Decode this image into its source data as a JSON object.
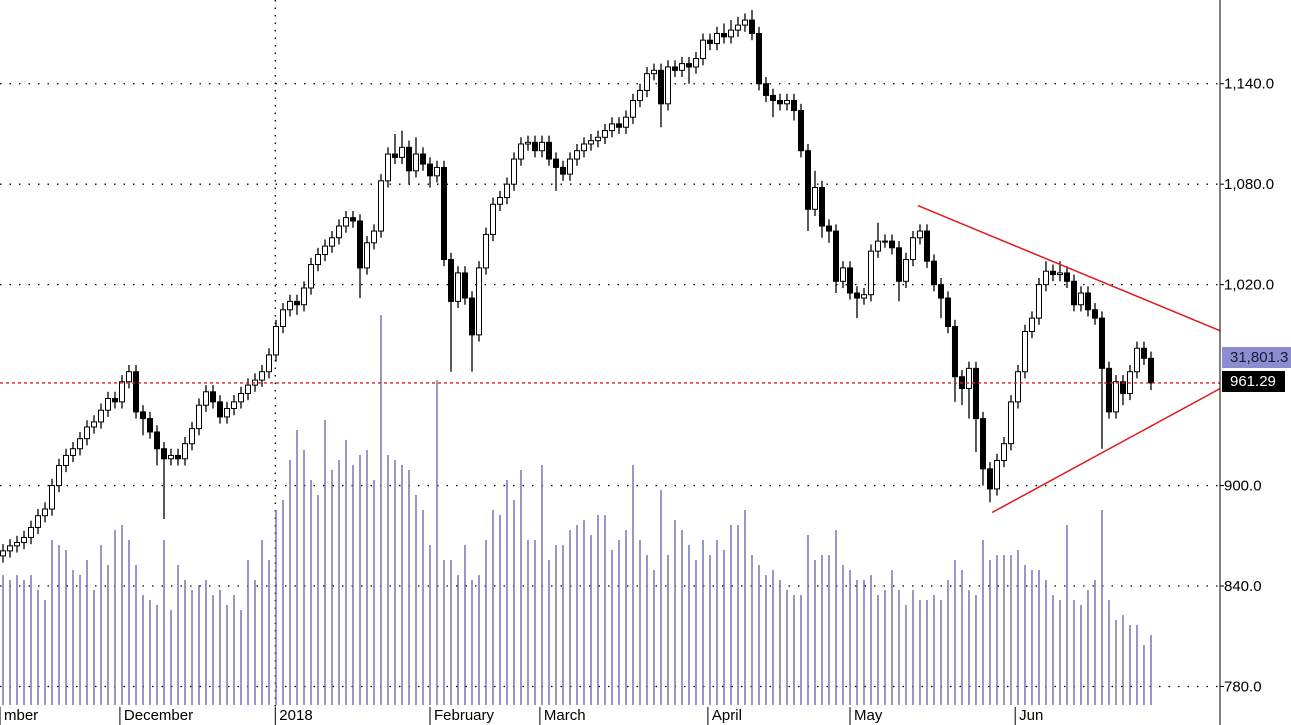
{
  "chart_data": {
    "type": "candlestick",
    "xlim": [
      -0.43,
      173.86
    ],
    "xticks": [
      {
        "value": -0.43,
        "label": "mber"
      },
      {
        "value": 16.7,
        "label": "December"
      },
      {
        "value": 38.9,
        "label": "2018"
      },
      {
        "value": 61,
        "label": "February"
      },
      {
        "value": 76.7,
        "label": "March"
      },
      {
        "value": 100.7,
        "label": "April"
      },
      {
        "value": 121,
        "label": "May"
      },
      {
        "value": 144.6,
        "label": "Jun"
      }
    ],
    "ylim": [
      757,
      1190
    ],
    "yticks": [
      {
        "value": 1140,
        "label": "1,140.0"
      },
      {
        "value": 1080,
        "label": "1,080.0"
      },
      {
        "value": 1020,
        "label": "1,020.0"
      },
      {
        "value": 900,
        "label": "900.0"
      },
      {
        "value": 840,
        "label": "840.0"
      },
      {
        "value": 780,
        "label": "780.0"
      }
    ],
    "grid": true,
    "y2lim": [
      0,
      705
    ],
    "up_color": "#ffffff",
    "down_color": "#000000",
    "volume_color": "#6b6bb5",
    "volume_label": "31,801.3",
    "trendline_color": "#e01a1a",
    "open": [
      858,
      861,
      864,
      866,
      869,
      875,
      882,
      886,
      900,
      912,
      918,
      922,
      928,
      935,
      938,
      945,
      952,
      950,
      962,
      968,
      944,
      940,
      932,
      922,
      916,
      918,
      916,
      925,
      934,
      948,
      956,
      950,
      941,
      946,
      950,
      955,
      960,
      963,
      968,
      978,
      995,
      1005,
      1010,
      1008,
      1018,
      1032,
      1038,
      1043,
      1048,
      1055,
      1060,
      1058,
      1030,
      1045,
      1052,
      1082,
      1098,
      1096,
      1102,
      1088,
      1098,
      1092,
      1085,
      1090,
      1035,
      1010,
      1027,
      1012,
      990,
      1030,
      1050,
      1068,
      1072,
      1080,
      1095,
      1104,
      1105,
      1100,
      1105,
      1095,
      1090,
      1086,
      1095,
      1100,
      1104,
      1106,
      1108,
      1112,
      1116,
      1114,
      1120,
      1130,
      1136,
      1146,
      1148,
      1128,
      1150,
      1148,
      1152,
      1150,
      1155,
      1166,
      1164,
      1170,
      1168,
      1172,
      1175,
      1178,
      1170,
      1140,
      1133,
      1130,
      1128,
      1130,
      1124,
      1100,
      1065,
      1078,
      1055,
      1052,
      1022,
      1030,
      1015,
      1012,
      1014,
      1040,
      1046,
      1046,
      1042,
      1022,
      1035,
      1048,
      1052,
      1034,
      1020,
      1012,
      995,
      965,
      958,
      970,
      940,
      910,
      898,
      915,
      925,
      950,
      968,
      992,
      1000,
      1020,
      1028,
      1026,
      1027,
      1022,
      1008,
      1015,
      1005,
      1000,
      970,
      944,
      962,
      955,
      968,
      982,
      976
    ],
    "high": [
      865,
      868,
      870,
      873,
      879,
      886,
      890,
      904,
      916,
      922,
      926,
      932,
      939,
      942,
      949,
      956,
      956,
      966,
      972,
      972,
      948,
      944,
      936,
      926,
      922,
      922,
      929,
      938,
      952,
      960,
      960,
      954,
      950,
      954,
      959,
      964,
      967,
      972,
      982,
      999,
      1009,
      1014,
      1014,
      1022,
      1036,
      1042,
      1047,
      1052,
      1059,
      1064,
      1064,
      1062,
      1049,
      1056,
      1086,
      1102,
      1110,
      1112,
      1106,
      1108,
      1102,
      1096,
      1094,
      1094,
      1039,
      1031,
      1031,
      1016,
      1034,
      1054,
      1072,
      1076,
      1084,
      1099,
      1108,
      1109,
      1109,
      1109,
      1109,
      1099,
      1094,
      1099,
      1104,
      1108,
      1110,
      1112,
      1116,
      1120,
      1120,
      1124,
      1134,
      1140,
      1150,
      1152,
      1152,
      1154,
      1154,
      1156,
      1156,
      1159,
      1170,
      1170,
      1174,
      1176,
      1178,
      1180,
      1182,
      1184,
      1174,
      1144,
      1137,
      1134,
      1134,
      1134,
      1128,
      1104,
      1088,
      1082,
      1059,
      1056,
      1034,
      1034,
      1019,
      1018,
      1044,
      1057,
      1050,
      1050,
      1046,
      1039,
      1052,
      1056,
      1056,
      1038,
      1024,
      1016,
      999,
      969,
      974,
      974,
      944,
      914,
      919,
      929,
      954,
      972,
      996,
      1004,
      1024,
      1034,
      1032,
      1034,
      1031,
      1026,
      1019,
      1019,
      1009,
      1004,
      974,
      966,
      966,
      972,
      986,
      986,
      980
    ],
    "low": [
      854,
      857,
      860,
      862,
      865,
      871,
      878,
      882,
      896,
      908,
      914,
      918,
      924,
      931,
      934,
      941,
      946,
      946,
      958,
      940,
      930,
      928,
      912,
      880,
      912,
      912,
      912,
      921,
      930,
      944,
      946,
      937,
      937,
      942,
      946,
      951,
      956,
      959,
      964,
      974,
      991,
      1001,
      1002,
      1004,
      1014,
      1028,
      1034,
      1039,
      1044,
      1051,
      1054,
      1012,
      1026,
      1041,
      1048,
      1078,
      1092,
      1092,
      1080,
      1084,
      1088,
      1078,
      1081,
      1031,
      968,
      1006,
      1008,
      968,
      986,
      1026,
      1046,
      1064,
      1068,
      1076,
      1091,
      1100,
      1096,
      1096,
      1091,
      1076,
      1082,
      1082,
      1091,
      1096,
      1100,
      1102,
      1104,
      1108,
      1110,
      1110,
      1116,
      1126,
      1132,
      1142,
      1114,
      1124,
      1144,
      1144,
      1140,
      1146,
      1151,
      1160,
      1160,
      1164,
      1164,
      1168,
      1171,
      1166,
      1136,
      1129,
      1120,
      1124,
      1124,
      1118,
      1096,
      1052,
      1061,
      1048,
      1045,
      1015,
      1018,
      1011,
      1000,
      1008,
      1010,
      1036,
      1042,
      1038,
      1010,
      1018,
      1031,
      1044,
      1030,
      1016,
      1000,
      991,
      950,
      948,
      940,
      920,
      900,
      890,
      894,
      911,
      921,
      946,
      964,
      988,
      996,
      1016,
      1022,
      1022,
      1018,
      1004,
      1004,
      1001,
      996,
      922,
      940,
      940,
      948,
      951,
      964,
      972,
      957
    ],
    "close": [
      861,
      864,
      866,
      869,
      875,
      882,
      886,
      900,
      912,
      918,
      922,
      928,
      935,
      938,
      945,
      952,
      950,
      962,
      968,
      944,
      940,
      932,
      922,
      916,
      918,
      916,
      925,
      934,
      948,
      956,
      950,
      941,
      946,
      950,
      955,
      960,
      963,
      968,
      978,
      995,
      1005,
      1010,
      1008,
      1018,
      1032,
      1038,
      1043,
      1048,
      1055,
      1060,
      1058,
      1030,
      1045,
      1052,
      1082,
      1098,
      1096,
      1102,
      1088,
      1098,
      1092,
      1085,
      1090,
      1035,
      1010,
      1027,
      1012,
      990,
      1030,
      1050,
      1068,
      1072,
      1080,
      1095,
      1104,
      1105,
      1100,
      1105,
      1095,
      1090,
      1086,
      1095,
      1100,
      1104,
      1106,
      1108,
      1112,
      1116,
      1114,
      1120,
      1130,
      1136,
      1146,
      1148,
      1128,
      1150,
      1148,
      1152,
      1150,
      1155,
      1166,
      1164,
      1170,
      1168,
      1172,
      1175,
      1178,
      1170,
      1140,
      1133,
      1130,
      1128,
      1130,
      1124,
      1100,
      1065,
      1078,
      1055,
      1052,
      1022,
      1030,
      1015,
      1012,
      1014,
      1040,
      1046,
      1046,
      1042,
      1022,
      1035,
      1048,
      1052,
      1034,
      1020,
      1012,
      995,
      965,
      958,
      970,
      940,
      910,
      898,
      915,
      925,
      950,
      968,
      992,
      1000,
      1020,
      1028,
      1026,
      1027,
      1022,
      1008,
      1015,
      1005,
      1000,
      970,
      944,
      962,
      955,
      968,
      982,
      976,
      961.29
    ],
    "volume": [
      130,
      125,
      130,
      125,
      130,
      115,
      105,
      165,
      160,
      155,
      135,
      130,
      145,
      115,
      160,
      140,
      175,
      180,
      165,
      140,
      110,
      105,
      100,
      165,
      95,
      140,
      125,
      115,
      120,
      125,
      110,
      115,
      100,
      110,
      95,
      145,
      125,
      165,
      145,
      195,
      205,
      245,
      275,
      255,
      225,
      210,
      285,
      235,
      245,
      265,
      240,
      250,
      255,
      225,
      390,
      250,
      245,
      240,
      235,
      210,
      195,
      160,
      325,
      145,
      145,
      130,
      160,
      125,
      130,
      165,
      195,
      190,
      225,
      205,
      235,
      165,
      165,
      240,
      145,
      160,
      160,
      175,
      180,
      185,
      170,
      190,
      190,
      155,
      165,
      175,
      240,
      165,
      150,
      135,
      215,
      150,
      185,
      175,
      160,
      145,
      165,
      150,
      165,
      155,
      180,
      180,
      195,
      150,
      140,
      130,
      135,
      125,
      115,
      110,
      110,
      170,
      145,
      150,
      150,
      175,
      140,
      135,
      125,
      125,
      130,
      110,
      115,
      135,
      115,
      100,
      115,
      105,
      105,
      110,
      105,
      125,
      145,
      135,
      115,
      110,
      165,
      145,
      150,
      150,
      150,
      155,
      140,
      135,
      135,
      125,
      110,
      105,
      180,
      105,
      100,
      115,
      125,
      195,
      105,
      85,
      90,
      80,
      80,
      60,
      70
    ],
    "trendlines": [
      {
        "points": [
          [
            130.7,
            1067.2
          ],
          [
            173.86,
            992.5
          ]
        ]
      },
      {
        "points": [
          [
            141.3,
            883.9
          ],
          [
            173.86,
            957.9
          ]
        ]
      }
    ]
  }
}
